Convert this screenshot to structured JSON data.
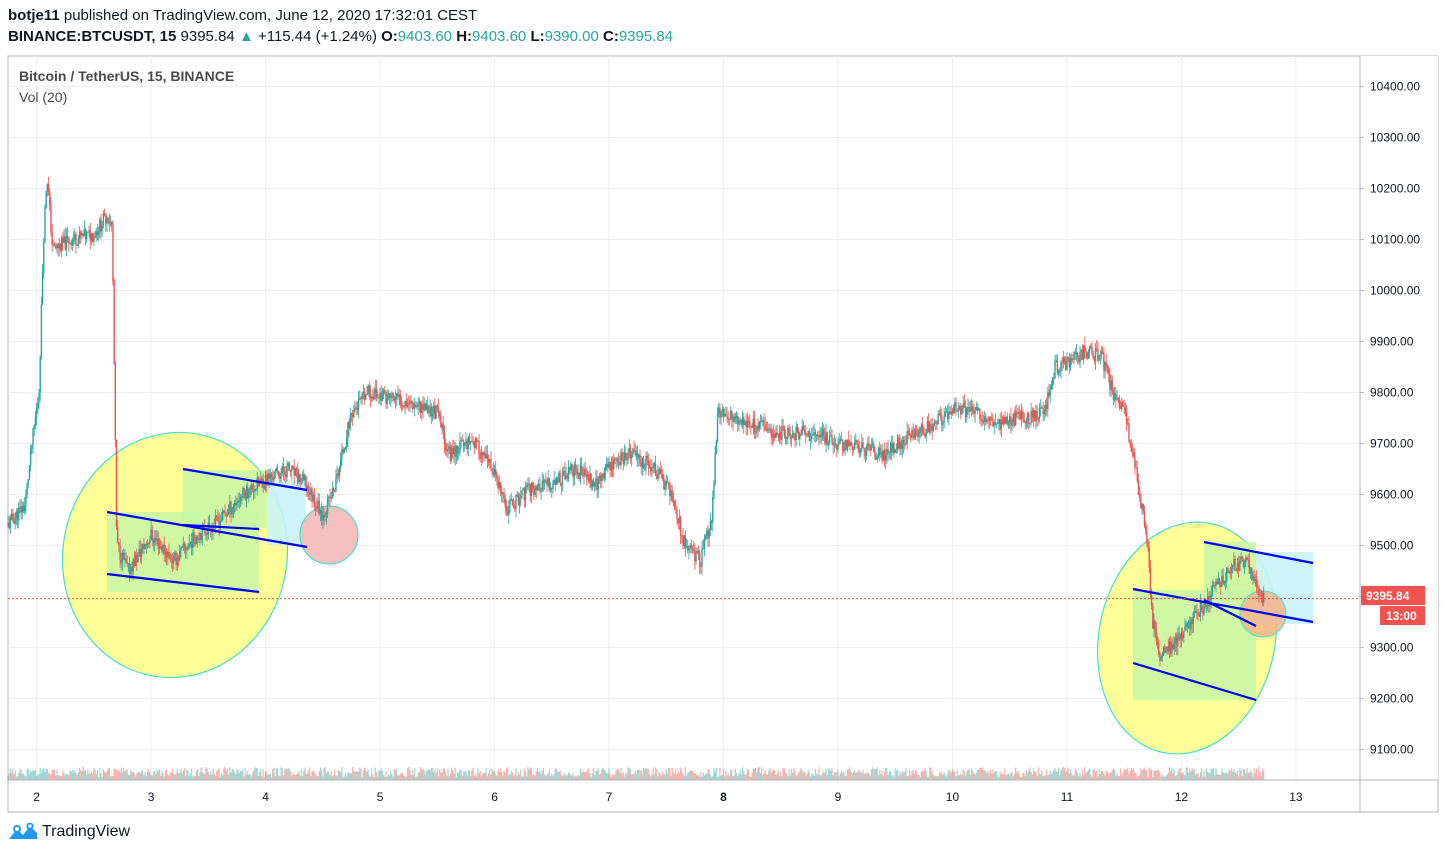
{
  "header": {
    "user": "botje11",
    "published_text": "published on TradingView.com, June 12, 2020 17:32:01 CEST",
    "symbol": "BINANCE:BTCUSDT, 15",
    "last": "9395.84",
    "arrow": "▲",
    "change": "+115.44 (+1.24%)",
    "o_label": "O:",
    "o_value": "9403.60",
    "h_label": "H:",
    "h_value": "9403.60",
    "l_label": "L:",
    "l_value": "9390.00",
    "c_label": "C:",
    "c_value": "9395.84"
  },
  "legend": {
    "title": "Bitcoin / TetherUS, 15, BINANCE",
    "volume": "Vol (20)"
  },
  "price_tag": {
    "value": "9395.84",
    "countdown": "13:00"
  },
  "footer": {
    "brand": "TradingView",
    "logo_icon": "tradingview-logo-icon"
  },
  "colors": {
    "up": "#26a69a",
    "down": "#ef5350",
    "channel": "#0000ff",
    "ellipse_fill": "#ffff9a",
    "ellipse_stroke": "#40e0d0",
    "zone_green": "#c8f7a6",
    "zone_cyan": "#c9f3f7",
    "circle_red": "#f7c0c0",
    "price_tag": "#ef5350"
  },
  "chart_data": {
    "type": "candlestick",
    "title": "Bitcoin / TetherUS, 15, BINANCE",
    "y_ticks": [
      9100,
      9200,
      9300,
      9400,
      9500,
      9600,
      9700,
      9800,
      9900,
      10000,
      10100,
      10200,
      10300,
      10400
    ],
    "y_tick_labels": [
      "9100.00",
      "9200.00",
      "9300.00",
      "9400.00",
      "9500.00",
      "9600.00",
      "9700.00",
      "9800.00",
      "9900.00",
      "10000.00",
      "10100.00",
      "10200.00",
      "10300.00",
      "10400.00"
    ],
    "ylim": [
      9040,
      10460
    ],
    "x_ticks": [
      2,
      3,
      4,
      5,
      6,
      7,
      8,
      9,
      10,
      11,
      12,
      13
    ],
    "x_tick_labels": [
      "2",
      "3",
      "4",
      "5",
      "6",
      "7",
      "8",
      "9",
      "10",
      "11",
      "12",
      "13"
    ],
    "xlim": [
      1.75,
      13.56
    ],
    "last_price": 9395.84,
    "price_path": [
      [
        1.75,
        9540
      ],
      [
        1.9,
        9580
      ],
      [
        1.96,
        9700
      ],
      [
        2.02,
        9800
      ],
      [
        2.06,
        10100
      ],
      [
        2.09,
        10230
      ],
      [
        2.14,
        10080
      ],
      [
        2.3,
        10100
      ],
      [
        2.5,
        10110
      ],
      [
        2.62,
        10150
      ],
      [
        2.66,
        10120
      ],
      [
        2.7,
        9500
      ],
      [
        2.8,
        9450
      ],
      [
        3.0,
        9520
      ],
      [
        3.2,
        9470
      ],
      [
        3.4,
        9520
      ],
      [
        3.6,
        9550
      ],
      [
        3.8,
        9600
      ],
      [
        4.0,
        9630
      ],
      [
        4.2,
        9650
      ],
      [
        4.35,
        9620
      ],
      [
        4.5,
        9560
      ],
      [
        4.6,
        9610
      ],
      [
        4.75,
        9760
      ],
      [
        4.9,
        9800
      ],
      [
        5.1,
        9790
      ],
      [
        5.3,
        9780
      ],
      [
        5.5,
        9760
      ],
      [
        5.6,
        9680
      ],
      [
        5.8,
        9710
      ],
      [
        6.0,
        9640
      ],
      [
        6.1,
        9570
      ],
      [
        6.3,
        9610
      ],
      [
        6.5,
        9620
      ],
      [
        6.7,
        9650
      ],
      [
        6.9,
        9620
      ],
      [
        7.0,
        9660
      ],
      [
        7.2,
        9680
      ],
      [
        7.4,
        9650
      ],
      [
        7.55,
        9600
      ],
      [
        7.65,
        9510
      ],
      [
        7.8,
        9470
      ],
      [
        7.9,
        9560
      ],
      [
        7.95,
        9760
      ],
      [
        8.2,
        9740
      ],
      [
        8.5,
        9720
      ],
      [
        8.8,
        9720
      ],
      [
        9.0,
        9700
      ],
      [
        9.2,
        9690
      ],
      [
        9.4,
        9680
      ],
      [
        9.6,
        9710
      ],
      [
        9.8,
        9730
      ],
      [
        10.0,
        9770
      ],
      [
        10.2,
        9760
      ],
      [
        10.4,
        9740
      ],
      [
        10.6,
        9750
      ],
      [
        10.8,
        9760
      ],
      [
        10.9,
        9850
      ],
      [
        11.0,
        9860
      ],
      [
        11.15,
        9880
      ],
      [
        11.3,
        9870
      ],
      [
        11.4,
        9800
      ],
      [
        11.5,
        9760
      ],
      [
        11.6,
        9650
      ],
      [
        11.7,
        9510
      ],
      [
        11.75,
        9350
      ],
      [
        11.82,
        9280
      ],
      [
        11.9,
        9300
      ],
      [
        12.0,
        9320
      ],
      [
        12.1,
        9360
      ],
      [
        12.2,
        9380
      ],
      [
        12.3,
        9420
      ],
      [
        12.45,
        9460
      ],
      [
        12.55,
        9470
      ],
      [
        12.65,
        9430
      ],
      [
        12.72,
        9395
      ]
    ]
  }
}
